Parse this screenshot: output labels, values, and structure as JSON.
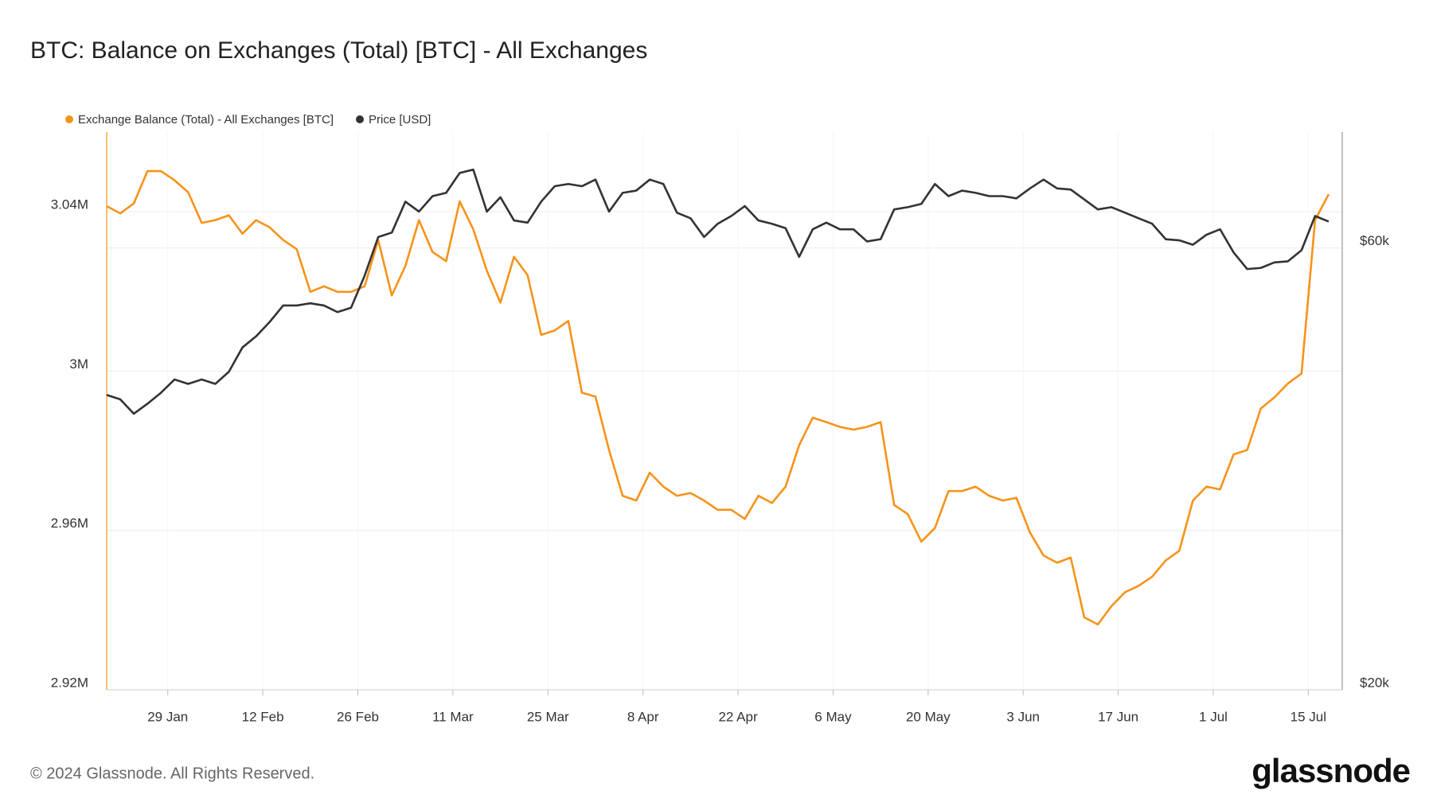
{
  "chart_data": {
    "type": "line",
    "title": "BTC: Balance on Exchanges (Total) [BTC] - All Exchanges",
    "x": [
      "20 Jan",
      "22 Jan",
      "24 Jan",
      "26 Jan",
      "28 Jan",
      "30 Jan",
      "1 Feb",
      "3 Feb",
      "5 Feb",
      "7 Feb",
      "9 Feb",
      "11 Feb",
      "13 Feb",
      "15 Feb",
      "17 Feb",
      "19 Feb",
      "21 Feb",
      "23 Feb",
      "25 Feb",
      "27 Feb",
      "29 Feb",
      "2 Mar",
      "4 Mar",
      "6 Mar",
      "8 Mar",
      "10 Mar",
      "12 Mar",
      "14 Mar",
      "16 Mar",
      "18 Mar",
      "20 Mar",
      "22 Mar",
      "24 Mar",
      "26 Mar",
      "28 Mar",
      "30 Mar",
      "1 Apr",
      "3 Apr",
      "5 Apr",
      "7 Apr",
      "9 Apr",
      "11 Apr",
      "13 Apr",
      "15 Apr",
      "17 Apr",
      "19 Apr",
      "21 Apr",
      "23 Apr",
      "25 Apr",
      "27 Apr",
      "29 Apr",
      "1 May",
      "3 May",
      "5 May",
      "7 May",
      "9 May",
      "11 May",
      "13 May",
      "15 May",
      "17 May",
      "19 May",
      "21 May",
      "23 May",
      "25 May",
      "27 May",
      "29 May",
      "31 May",
      "2 Jun",
      "4 Jun",
      "6 Jun",
      "8 Jun",
      "10 Jun",
      "12 Jun",
      "14 Jun",
      "16 Jun",
      "18 Jun",
      "20 Jun",
      "22 Jun",
      "24 Jun",
      "26 Jun",
      "28 Jun",
      "30 Jun",
      "2 Jul",
      "4 Jul",
      "6 Jul",
      "8 Jul",
      "10 Jul",
      "12 Jul",
      "14 Jul",
      "16 Jul",
      "18 Jul"
    ],
    "series": [
      {
        "name": "Exchange Balance (Total) - All Exchanges [BTC]",
        "color": "#f7931a",
        "axis": "y",
        "values": [
          3041400,
          3039600,
          3042100,
          3050200,
          3050200,
          3047900,
          3044900,
          3037200,
          3037900,
          3039100,
          3034500,
          3037900,
          3036100,
          3032900,
          3030600,
          3019900,
          3021300,
          3019900,
          3019900,
          3021300,
          3032900,
          3019000,
          3026400,
          3037900,
          3029900,
          3027600,
          3042600,
          3035600,
          3025200,
          3017200,
          3028700,
          3024100,
          3009100,
          3010200,
          3012600,
          2994600,
          2993600,
          2980200,
          2968700,
          2967500,
          2974500,
          2971000,
          2968700,
          2969400,
          2967500,
          2965200,
          2965200,
          2962900,
          2968700,
          2966900,
          2971000,
          2981400,
          2988300,
          2987200,
          2986000,
          2985300,
          2986000,
          2987200,
          2966400,
          2964100,
          2957200,
          2960600,
          2969900,
          2969900,
          2971000,
          2968700,
          2967500,
          2968200,
          2959500,
          2953700,
          2951900,
          2953200,
          2938200,
          2936400,
          2941000,
          2944500,
          2946100,
          2948400,
          2952500,
          2954900,
          2967500,
          2971000,
          2970300,
          2979100,
          2980200,
          2990600,
          2993400,
          2996900,
          2999400,
          3037900,
          3044400
        ]
      },
      {
        "name": "Price [USD]",
        "color": "#333333",
        "axis": "y2",
        "values": [
          46700,
          46300,
          45000,
          45900,
          46900,
          48100,
          47700,
          48100,
          47700,
          48800,
          51000,
          52000,
          53300,
          54800,
          54800,
          55000,
          54800,
          54200,
          54600,
          57500,
          61000,
          61400,
          64200,
          63300,
          64700,
          65000,
          66800,
          67100,
          63300,
          64600,
          62500,
          62300,
          64200,
          65600,
          65800,
          65600,
          66200,
          63300,
          65000,
          65200,
          66200,
          65800,
          63200,
          62700,
          61000,
          62200,
          62900,
          63800,
          62500,
          62200,
          61800,
          59200,
          61700,
          62300,
          61700,
          61700,
          60600,
          60800,
          63500,
          63700,
          64000,
          65800,
          64700,
          65200,
          65000,
          64700,
          64700,
          64500,
          65400,
          66200,
          65400,
          65300,
          64400,
          63500,
          63700,
          63200,
          62700,
          62200,
          60800,
          60700,
          60300,
          61200,
          61700,
          59600,
          58100,
          58200,
          58700,
          58800,
          59800,
          62900,
          62400
        ]
      }
    ],
    "xlim": [
      "20 Jan",
      "20 Jul"
    ],
    "xticks": [
      "29 Jan",
      "12 Feb",
      "26 Feb",
      "11 Mar",
      "25 Mar",
      "8 Apr",
      "22 Apr",
      "6 May",
      "20 May",
      "3 Jun",
      "17 Jun",
      "1 Jul",
      "15 Jul"
    ],
    "ylim": [
      2920000,
      3060000
    ],
    "yticks": [
      {
        "value": 2920000,
        "label": "2.92M"
      },
      {
        "value": 2960000,
        "label": "2.96M"
      },
      {
        "value": 3000000,
        "label": "3M"
      },
      {
        "value": 3040000,
        "label": "3.04M"
      }
    ],
    "y2lim": [
      20000,
      70500
    ],
    "y2ticks": [
      {
        "value": 20000,
        "label": "$20k"
      },
      {
        "value": 60000,
        "label": "$60k"
      }
    ],
    "grid": true,
    "legend": "top-left"
  },
  "footer": {
    "copyright": "© 2024 Glassnode. All Rights Reserved.",
    "brand": "glassnode"
  }
}
